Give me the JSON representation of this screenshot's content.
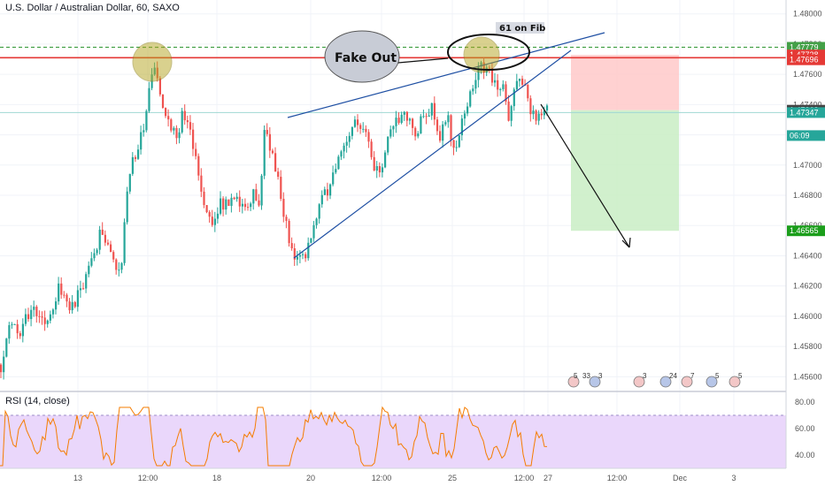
{
  "header": {
    "title": "U.S. Dollar / Australian Dollar, 60, SAXO",
    "rsi_title": "RSI (14, close)"
  },
  "colors": {
    "up": "#26a69a",
    "down": "#ef5350",
    "resistance": "#e53935",
    "fib_line": "#43a047",
    "trendline": "#1e4fa3",
    "rsi_line": "#f57c00",
    "rsi_band": "#ead7fb",
    "stop_zone": "#ffc9c9",
    "target_zone": "#c9edc4",
    "highlight": "#b5a51f"
  },
  "annotations": {
    "fakeout": "Fake Out",
    "fib": "61 on Fib"
  },
  "chart_data": {
    "type": "candlestick",
    "title": "U.S. Dollar / Australian Dollar, 60, SAXO",
    "x_tick_labels": [
      "13",
      "12:00",
      "18",
      "20",
      "12:00",
      "25",
      "12:00",
      "27",
      "12:00",
      "Dec",
      "3"
    ],
    "y_tick_labels": [
      "1.48000",
      "1.47800",
      "1.47600",
      "1.47400",
      "1.47200",
      "1.47000",
      "1.46800",
      "1.46600",
      "1.46400",
      "1.46200",
      "1.46000",
      "1.45800",
      "1.45600"
    ],
    "ylim": [
      1.4552,
      1.4808
    ],
    "price_path": [
      [
        0,
        1.4568
      ],
      [
        10,
        1.4597
      ],
      [
        20,
        1.4588
      ],
      [
        35,
        1.4606
      ],
      [
        50,
        1.4595
      ],
      [
        65,
        1.4618
      ],
      [
        80,
        1.4605
      ],
      [
        95,
        1.4625
      ],
      [
        105,
        1.464
      ],
      [
        112,
        1.4655
      ],
      [
        125,
        1.4638
      ],
      [
        135,
        1.4625
      ],
      [
        142,
        1.4683
      ],
      [
        150,
        1.4705
      ],
      [
        160,
        1.4722
      ],
      [
        166,
        1.4745
      ],
      [
        172,
        1.477
      ],
      [
        178,
        1.4748
      ],
      [
        188,
        1.4733
      ],
      [
        198,
        1.4718
      ],
      [
        206,
        1.4734
      ],
      [
        214,
        1.4722
      ],
      [
        222,
        1.47
      ],
      [
        228,
        1.468
      ],
      [
        236,
        1.4662
      ],
      [
        246,
        1.4674
      ],
      [
        256,
        1.4672
      ],
      [
        266,
        1.4676
      ],
      [
        276,
        1.4668
      ],
      [
        286,
        1.468
      ],
      [
        292,
        1.467
      ],
      [
        298,
        1.4728
      ],
      [
        306,
        1.4708
      ],
      [
        316,
        1.4683
      ],
      [
        324,
        1.4652
      ],
      [
        332,
        1.4642
      ],
      [
        344,
        1.4643
      ],
      [
        354,
        1.466
      ],
      [
        364,
        1.4678
      ],
      [
        374,
        1.469
      ],
      [
        384,
        1.471
      ],
      [
        394,
        1.4722
      ],
      [
        404,
        1.4732
      ],
      [
        412,
        1.4718
      ],
      [
        420,
        1.4702
      ],
      [
        428,
        1.469
      ],
      [
        436,
        1.4715
      ],
      [
        444,
        1.473
      ],
      [
        454,
        1.4735
      ],
      [
        464,
        1.4727
      ],
      [
        470,
        1.4714
      ],
      [
        476,
        1.4735
      ],
      [
        486,
        1.4738
      ],
      [
        496,
        1.472
      ],
      [
        504,
        1.4732
      ],
      [
        512,
        1.4712
      ],
      [
        520,
        1.4725
      ],
      [
        528,
        1.4745
      ],
      [
        536,
        1.4756
      ],
      [
        544,
        1.4767
      ],
      [
        552,
        1.4762
      ],
      [
        560,
        1.4752
      ],
      [
        568,
        1.475
      ],
      [
        574,
        1.473
      ],
      [
        580,
        1.4748
      ],
      [
        588,
        1.4757
      ],
      [
        594,
        1.4752
      ],
      [
        600,
        1.4733
      ],
      [
        606,
        1.4732
      ],
      [
        612,
        1.4738
      ],
      [
        618,
        1.4734
      ]
    ],
    "rsi": {
      "label": "RSI (14, close)",
      "y_tick_labels": [
        "80.00",
        "60.00",
        "40.00"
      ],
      "ylim": [
        30,
        86
      ],
      "band": [
        30,
        70
      ]
    },
    "price_tags": [
      {
        "value": "1.47779",
        "price": 1.47779,
        "color": "#43a047"
      },
      {
        "value": "1.47728",
        "price": 1.47728,
        "color": "#e53935"
      },
      {
        "value": "1.47696",
        "price": 1.47696,
        "color": "#e53935"
      },
      {
        "value": "1.47363",
        "price": 1.47363,
        "color": "#444444"
      },
      {
        "value": "1.47347",
        "price": 1.47347,
        "color": "#26a69a"
      },
      {
        "value": "06:09",
        "price": 1.47195,
        "color": "#26a69a"
      },
      {
        "value": "1.46565",
        "price": 1.46565,
        "color": "#1b9e1b"
      }
    ],
    "event_counts": [
      "5",
      "33",
      "3",
      "3",
      "24",
      "7",
      "5",
      "5"
    ]
  }
}
